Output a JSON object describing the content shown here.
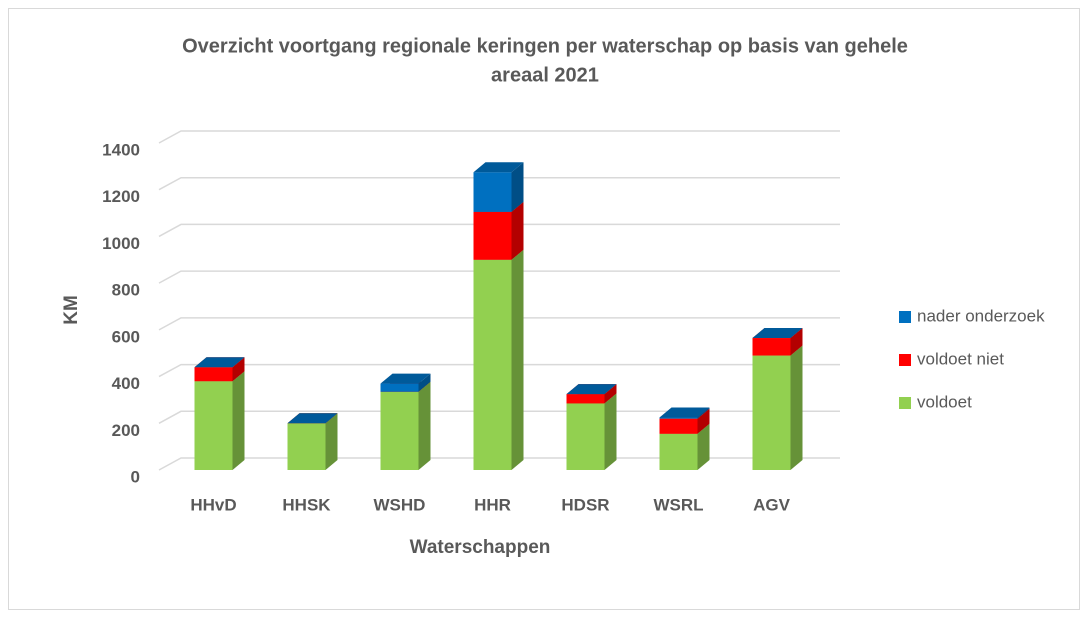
{
  "chart_data": {
    "type": "bar3d_stacked",
    "title": [
      "Overzicht voortgang regionale keringen per waterschap op basis van gehele",
      "areaal 2021"
    ],
    "x_label": "Waterschappen",
    "y_label": "KM",
    "categories": [
      "HHvD",
      "HHSK",
      "WSHD",
      "HHR",
      "HDSR",
      "WSRL",
      "AGV"
    ],
    "series": [
      {
        "name": "voldoet",
        "color": "#92d050",
        "values": [
          380,
          200,
          335,
          900,
          285,
          155,
          490
        ]
      },
      {
        "name": "voldoet niet",
        "color": "#ff0000",
        "values": [
          60,
          0,
          0,
          205,
          40,
          65,
          75
        ]
      },
      {
        "name": "nader onderzoek",
        "color": "#0070c0",
        "values": [
          0,
          0,
          35,
          170,
          0,
          5,
          0
        ]
      }
    ],
    "ylim": [
      0,
      1400
    ],
    "yticks": [
      0,
      200,
      400,
      600,
      800,
      1000,
      1200,
      1400
    ],
    "grid": true,
    "legend": "right"
  }
}
